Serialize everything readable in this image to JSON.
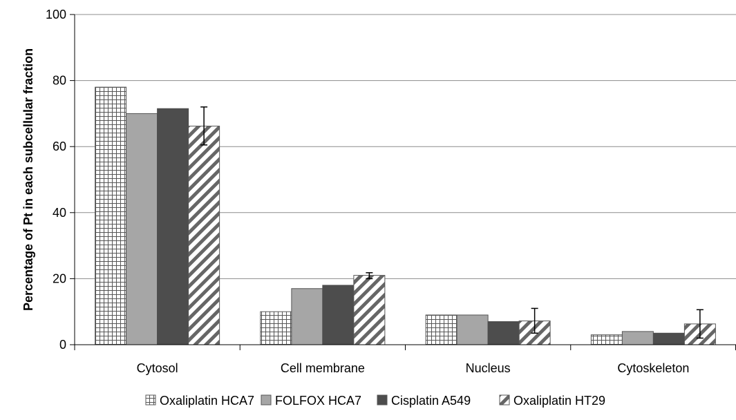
{
  "chart_data": {
    "type": "bar",
    "title": "",
    "xlabel": "",
    "ylabel": "Percentage of Pt in each subcellular fraction",
    "ylim": [
      0,
      100
    ],
    "yticks": [
      0,
      20,
      40,
      60,
      80,
      100
    ],
    "grid": true,
    "legend_position": "bottom",
    "categories": [
      "Cytosol",
      "Cell membrane",
      "Nucleus",
      "Cytoskeleton"
    ],
    "series": [
      {
        "name": "Oxaliplatin HCA7",
        "values": [
          78,
          10,
          9,
          3
        ],
        "pattern": "grid",
        "color": "#ffffff"
      },
      {
        "name": "FOLFOX HCA7",
        "values": [
          70,
          17,
          9,
          4
        ],
        "pattern": "solid",
        "color": "#a6a6a6"
      },
      {
        "name": "Cisplatin A549",
        "values": [
          71.5,
          18,
          7,
          3.5
        ],
        "pattern": "solid",
        "color": "#4d4d4d"
      },
      {
        "name": "Oxaliplatin HT29",
        "values": [
          66.2,
          21,
          7.2,
          6.3
        ],
        "pattern": "diagonal",
        "color": "#ffffff",
        "error_low": [
          60.5,
          20,
          3.5,
          2
        ],
        "error_high": [
          72,
          21.8,
          11,
          10.6
        ]
      }
    ]
  }
}
